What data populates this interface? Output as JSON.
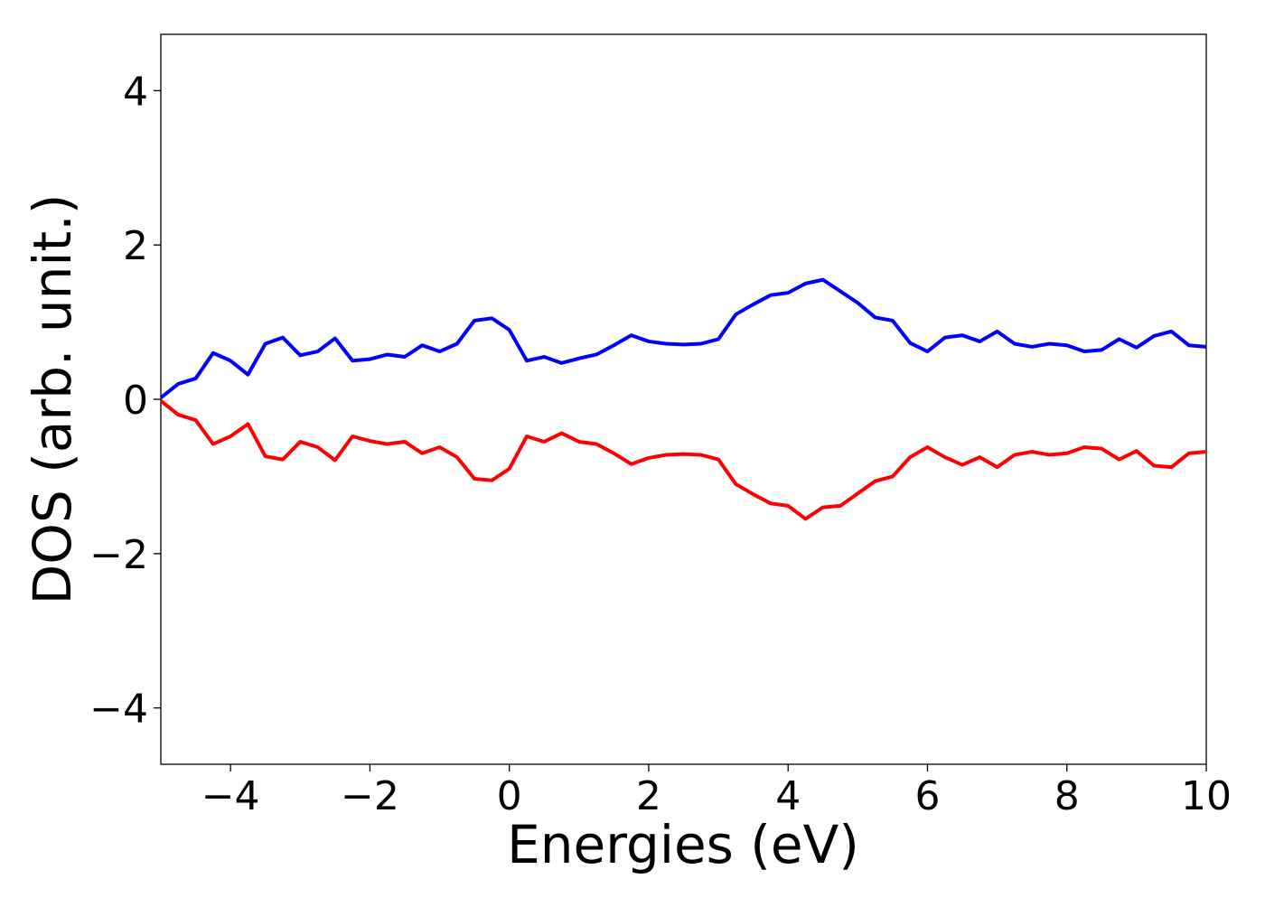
{
  "chart_data": {
    "type": "line",
    "x_label": "Energies (eV)",
    "y_label": "DOS (arb. unit.)",
    "x": [
      -5,
      -4.75,
      -4.5,
      -4.25,
      -4,
      -3.75,
      -3.5,
      -3.25,
      -3,
      -2.75,
      -2.5,
      -2.25,
      -2,
      -1.75,
      -1.5,
      -1.25,
      -1,
      -0.75,
      -0.5,
      -0.25,
      0,
      0.25,
      0.5,
      0.75,
      1,
      1.25,
      1.5,
      1.75,
      2,
      2.25,
      2.5,
      2.75,
      3,
      3.25,
      3.5,
      3.75,
      4,
      4.25,
      4.5,
      4.75,
      5,
      5.25,
      5.5,
      5.75,
      6,
      6.25,
      6.5,
      6.75,
      7,
      7.25,
      7.5,
      7.75,
      8,
      8.25,
      8.5,
      8.75,
      9,
      9.25,
      9.5,
      9.75,
      10
    ],
    "series": [
      {
        "color": "#0000ff",
        "values": [
          0.02,
          0.2,
          0.27,
          0.6,
          0.5,
          0.32,
          0.72,
          0.8,
          0.57,
          0.62,
          0.79,
          0.5,
          0.52,
          0.58,
          0.55,
          0.7,
          0.62,
          0.72,
          1.02,
          1.05,
          0.9,
          0.5,
          0.55,
          0.47,
          0.53,
          0.58,
          0.7,
          0.83,
          0.75,
          0.72,
          0.71,
          0.72,
          0.78,
          1.1,
          1.23,
          1.35,
          1.38,
          1.5,
          1.55,
          1.4,
          1.25,
          1.06,
          1.02,
          0.73,
          0.62,
          0.8,
          0.83,
          0.75,
          0.88,
          0.72,
          0.68,
          0.72,
          0.7,
          0.62,
          0.64,
          0.78,
          0.67,
          0.82,
          0.88,
          0.7,
          0.68
        ]
      },
      {
        "color": "#ff0000",
        "values": [
          -0.02,
          -0.2,
          -0.27,
          -0.58,
          -0.48,
          -0.32,
          -0.74,
          -0.78,
          -0.55,
          -0.62,
          -0.79,
          -0.48,
          -0.54,
          -0.58,
          -0.55,
          -0.7,
          -0.62,
          -0.75,
          -1.03,
          -1.05,
          -0.9,
          -0.48,
          -0.55,
          -0.44,
          -0.55,
          -0.58,
          -0.7,
          -0.84,
          -0.76,
          -0.72,
          -0.71,
          -0.72,
          -0.78,
          -1.1,
          -1.23,
          -1.35,
          -1.38,
          -1.55,
          -1.4,
          -1.38,
          -1.22,
          -1.06,
          -1.0,
          -0.75,
          -0.62,
          -0.75,
          -0.85,
          -0.75,
          -0.88,
          -0.72,
          -0.68,
          -0.72,
          -0.7,
          -0.62,
          -0.64,
          -0.78,
          -0.67,
          -0.86,
          -0.88,
          -0.7,
          -0.68
        ]
      }
    ],
    "xlim": [
      -5,
      10
    ],
    "ylim": [
      -4.73,
      4.73
    ],
    "xticks": [
      {
        "value": -4,
        "label": "−4"
      },
      {
        "value": -2,
        "label": "−2"
      },
      0,
      2,
      4,
      6,
      8,
      10
    ],
    "yticks": [
      {
        "value": -4,
        "label": "−4"
      },
      {
        "value": -2,
        "label": "−2"
      },
      0,
      2,
      4
    ],
    "grid": false
  }
}
